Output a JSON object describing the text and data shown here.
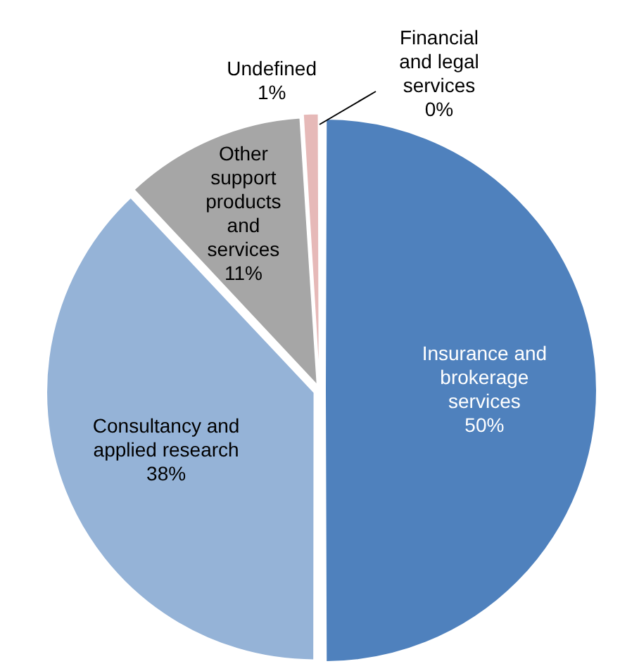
{
  "chart_data": {
    "type": "pie",
    "categories": [
      "Insurance and brokerage services",
      "Consultancy and applied research",
      "Other support products and services",
      "Undefined",
      "Financial and legal services"
    ],
    "values": [
      50,
      38,
      11,
      1,
      0
    ],
    "colors": [
      "#4f81bd",
      "#95b3d7",
      "#a6a6a6",
      "#e6b9b8",
      "#c0504d"
    ],
    "value_labels": [
      "50%",
      "38%",
      "11%",
      "1%",
      "0%"
    ],
    "legend": false
  }
}
